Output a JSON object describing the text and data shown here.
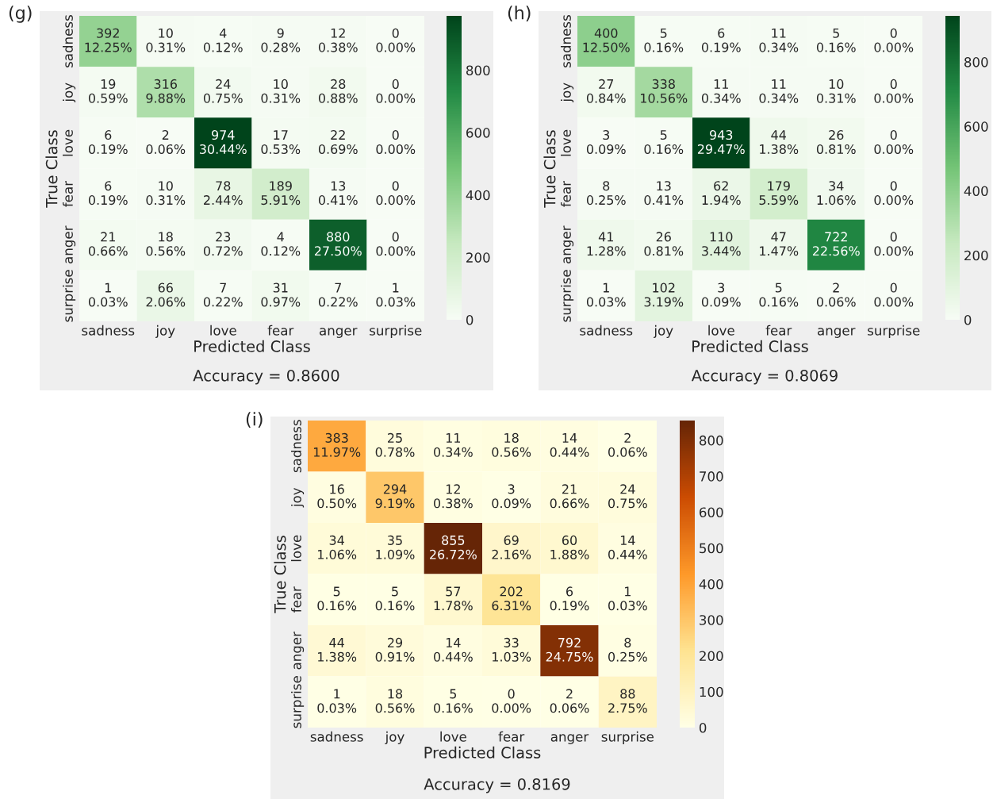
{
  "chart_data": [
    {
      "type": "heatmap",
      "title": "(g)",
      "xlabel": "Predicted Class",
      "ylabel": "True Class",
      "annotations": [
        "Accuracy = 0.8600"
      ],
      "categories": [
        "sadness",
        "joy",
        "love",
        "fear",
        "anger",
        "surprise"
      ],
      "y_categories": [
        "sadness",
        "joy",
        "love",
        "fear",
        "anger",
        "surprise"
      ],
      "cells": [
        [
          392,
          10,
          4,
          9,
          12,
          0
        ],
        [
          19,
          316,
          24,
          10,
          28,
          0
        ],
        [
          6,
          2,
          974,
          17,
          22,
          0
        ],
        [
          6,
          10,
          78,
          189,
          13,
          0
        ],
        [
          21,
          18,
          23,
          4,
          880,
          0
        ],
        [
          1,
          66,
          7,
          31,
          7,
          1
        ]
      ],
      "cell_labels": [
        [
          "392\n12.25%",
          "10\n0.31%",
          "4\n0.12%",
          "9\n0.28%",
          "12\n0.38%",
          "0\n0.00%"
        ],
        [
          "19\n0.59%",
          "316\n9.88%",
          "24\n0.75%",
          "10\n0.31%",
          "28\n0.88%",
          "0\n0.00%"
        ],
        [
          "6\n0.19%",
          "2\n0.06%",
          "974\n30.44%",
          "17\n0.53%",
          "22\n0.69%",
          "0\n0.00%"
        ],
        [
          "6\n0.19%",
          "10\n0.31%",
          "78\n2.44%",
          "189\n5.91%",
          "13\n0.41%",
          "0\n0.00%"
        ],
        [
          "21\n0.66%",
          "18\n0.56%",
          "23\n0.72%",
          "4\n0.12%",
          "880\n27.50%",
          "0\n0.00%"
        ],
        [
          "1\n0.03%",
          "66\n2.06%",
          "7\n0.22%",
          "31\n0.97%",
          "7\n0.22%",
          "1\n0.03%"
        ]
      ],
      "clim": [
        0,
        974
      ],
      "cticks": [
        0,
        200,
        400,
        600,
        800
      ],
      "colors": [
        "#f7fcf5",
        "#c7e9c0",
        "#74c476",
        "#238b45",
        "#00441b"
      ]
    },
    {
      "type": "heatmap",
      "title": "(h)",
      "xlabel": "Predicted Class",
      "ylabel": "True Class",
      "annotations": [
        "Accuracy = 0.8069"
      ],
      "categories": [
        "sadness",
        "joy",
        "love",
        "fear",
        "anger",
        "surprise"
      ],
      "y_categories": [
        "sadness",
        "joy",
        "love",
        "fear",
        "anger",
        "surprise"
      ],
      "cells": [
        [
          400,
          5,
          6,
          11,
          5,
          0
        ],
        [
          27,
          338,
          11,
          11,
          10,
          0
        ],
        [
          3,
          5,
          943,
          44,
          26,
          0
        ],
        [
          8,
          13,
          62,
          179,
          34,
          0
        ],
        [
          41,
          26,
          110,
          47,
          722,
          0
        ],
        [
          1,
          102,
          3,
          5,
          2,
          0
        ]
      ],
      "cell_labels": [
        [
          "400\n12.50%",
          "5\n0.16%",
          "6\n0.19%",
          "11\n0.34%",
          "5\n0.16%",
          "0\n0.00%"
        ],
        [
          "27\n0.84%",
          "338\n10.56%",
          "11\n0.34%",
          "11\n0.34%",
          "10\n0.31%",
          "0\n0.00%"
        ],
        [
          "3\n0.09%",
          "5\n0.16%",
          "943\n29.47%",
          "44\n1.38%",
          "26\n0.81%",
          "0\n0.00%"
        ],
        [
          "8\n0.25%",
          "13\n0.41%",
          "62\n1.94%",
          "179\n5.59%",
          "34\n1.06%",
          "0\n0.00%"
        ],
        [
          "41\n1.28%",
          "26\n0.81%",
          "110\n3.44%",
          "47\n1.47%",
          "722\n22.56%",
          "0\n0.00%"
        ],
        [
          "1\n0.03%",
          "102\n3.19%",
          "3\n0.09%",
          "5\n0.16%",
          "2\n0.06%",
          "0\n0.00%"
        ]
      ],
      "clim": [
        0,
        943
      ],
      "cticks": [
        0,
        200,
        400,
        600,
        800
      ],
      "colors": [
        "#f7fcf5",
        "#c7e9c0",
        "#74c476",
        "#238b45",
        "#00441b"
      ]
    },
    {
      "type": "heatmap",
      "title": "(i)",
      "xlabel": "Predicted Class",
      "ylabel": "True Class",
      "annotations": [
        "Accuracy = 0.8169"
      ],
      "categories": [
        "sadness",
        "joy",
        "love",
        "fear",
        "anger",
        "surprise"
      ],
      "y_categories": [
        "sadness",
        "joy",
        "love",
        "fear",
        "anger",
        "surprise"
      ],
      "cells": [
        [
          383,
          25,
          11,
          18,
          14,
          2
        ],
        [
          16,
          294,
          12,
          3,
          21,
          24
        ],
        [
          34,
          35,
          855,
          69,
          60,
          14
        ],
        [
          5,
          5,
          57,
          202,
          6,
          1
        ],
        [
          44,
          29,
          14,
          33,
          792,
          8
        ],
        [
          1,
          18,
          5,
          0,
          2,
          88
        ]
      ],
      "cell_labels": [
        [
          "383\n11.97%",
          "25\n0.78%",
          "11\n0.34%",
          "18\n0.56%",
          "14\n0.44%",
          "2\n0.06%"
        ],
        [
          "16\n0.50%",
          "294\n9.19%",
          "12\n0.38%",
          "3\n0.09%",
          "21\n0.66%",
          "24\n0.75%"
        ],
        [
          "34\n1.06%",
          "35\n1.09%",
          "855\n26.72%",
          "69\n2.16%",
          "60\n1.88%",
          "14\n0.44%"
        ],
        [
          "5\n0.16%",
          "5\n0.16%",
          "57\n1.78%",
          "202\n6.31%",
          "6\n0.19%",
          "1\n0.03%"
        ],
        [
          "44\n1.38%",
          "29\n0.91%",
          "14\n0.44%",
          "33\n1.03%",
          "792\n24.75%",
          "8\n0.25%"
        ],
        [
          "1\n0.03%",
          "18\n0.56%",
          "5\n0.16%",
          "0\n0.00%",
          "2\n0.06%",
          "88\n2.75%"
        ]
      ],
      "clim": [
        0,
        855
      ],
      "cticks": [
        0,
        100,
        200,
        300,
        400,
        500,
        600,
        700,
        800
      ],
      "colors": [
        "#ffffe5",
        "#fee391",
        "#fe9929",
        "#cc4c02",
        "#662506"
      ]
    }
  ]
}
